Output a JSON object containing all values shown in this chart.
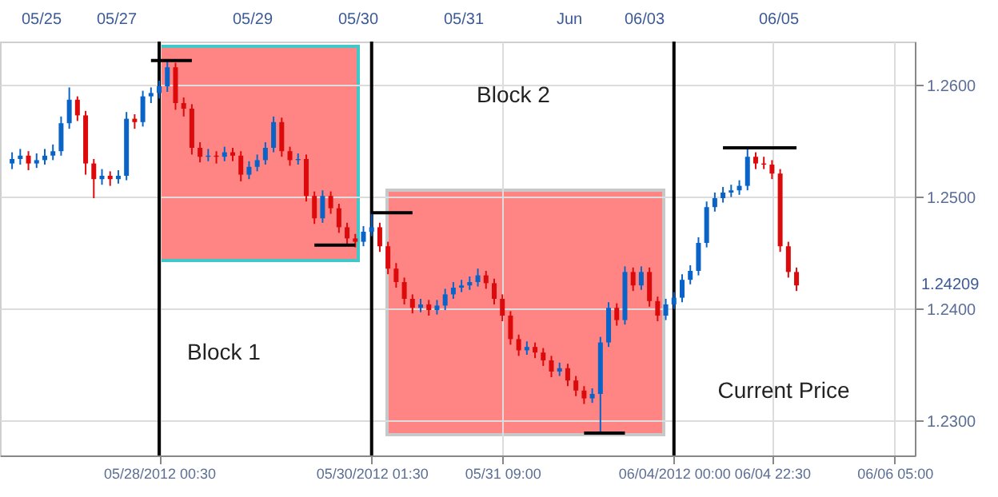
{
  "chart_data": {
    "type": "candlestick",
    "categories": [
      null,
      null,
      null,
      null,
      null,
      null,
      null,
      null,
      null,
      null,
      null,
      null,
      null,
      null,
      null,
      null,
      null,
      null,
      "05/28/2012 00:30",
      null,
      null,
      null,
      null,
      null,
      null,
      null,
      null,
      null,
      null,
      null,
      null,
      null,
      null,
      null,
      null,
      null,
      null,
      null,
      null,
      null,
      null,
      null,
      null,
      null,
      "05/30/2012 01:30",
      null,
      null,
      null,
      null,
      null,
      null,
      null,
      null,
      null,
      null,
      null,
      null,
      null,
      null,
      null,
      "05/31 09:00",
      null,
      null,
      null,
      null,
      null,
      null,
      null,
      null,
      null,
      null,
      null,
      null,
      null,
      null,
      null,
      null,
      null,
      null,
      null,
      null,
      "06/04/2012 00:00",
      null,
      null,
      null,
      null,
      null,
      null,
      null,
      null,
      null,
      null,
      null,
      "06/04 22:30",
      null,
      null,
      null,
      null,
      null,
      null,
      null,
      null,
      null,
      null,
      null,
      null,
      null,
      null,
      "06/06 05:00",
      null
    ],
    "ohlc": [
      [
        1.253,
        1.254,
        1.2525,
        1.2534
      ],
      [
        1.2534,
        1.2543,
        1.2529,
        1.2537
      ],
      [
        1.2537,
        1.2541,
        1.2524,
        1.253
      ],
      [
        1.253,
        1.2539,
        1.2526,
        1.2533
      ],
      [
        1.2533,
        1.2543,
        1.2529,
        1.2537
      ],
      [
        1.2537,
        1.2547,
        1.2533,
        1.2541
      ],
      [
        1.2541,
        1.2572,
        1.2537,
        1.2566
      ],
      [
        1.2566,
        1.2598,
        1.2561,
        1.2587
      ],
      [
        1.2587,
        1.259,
        1.2568,
        1.2573
      ],
      [
        1.2573,
        1.2577,
        1.252,
        1.253
      ],
      [
        1.253,
        1.2534,
        1.2499,
        1.2516
      ],
      [
        1.2516,
        1.2525,
        1.2511,
        1.2519
      ],
      [
        1.2519,
        1.2523,
        1.251,
        1.2516
      ],
      [
        1.2516,
        1.2524,
        1.2512,
        1.2519
      ],
      [
        1.2519,
        1.2576,
        1.2515,
        1.257
      ],
      [
        1.257,
        1.2574,
        1.2561,
        1.2567
      ],
      [
        1.2567,
        1.2595,
        1.2563,
        1.259
      ],
      [
        1.259,
        1.2598,
        1.2584,
        1.2593
      ],
      [
        1.2593,
        1.2604,
        1.2588,
        1.2599
      ],
      [
        1.2599,
        1.2622,
        1.2594,
        1.2616
      ],
      [
        1.2616,
        1.262,
        1.2578,
        1.2584
      ],
      [
        1.2584,
        1.2589,
        1.2572,
        1.2579
      ],
      [
        1.2579,
        1.2583,
        1.2538,
        1.2544
      ],
      [
        1.2544,
        1.2549,
        1.2531,
        1.2536
      ],
      [
        1.2536,
        1.2543,
        1.2532,
        1.2537
      ],
      [
        1.2537,
        1.2541,
        1.253,
        1.2536
      ],
      [
        1.2536,
        1.2545,
        1.2532,
        1.254
      ],
      [
        1.254,
        1.2544,
        1.2532,
        1.2537
      ],
      [
        1.2537,
        1.2541,
        1.2514,
        1.252
      ],
      [
        1.252,
        1.2532,
        1.2516,
        1.2527
      ],
      [
        1.2527,
        1.2538,
        1.2523,
        1.2533
      ],
      [
        1.2533,
        1.2549,
        1.2529,
        1.2544
      ],
      [
        1.2544,
        1.2572,
        1.254,
        1.2567
      ],
      [
        1.2567,
        1.2571,
        1.2536,
        1.2541
      ],
      [
        1.2541,
        1.2545,
        1.2528,
        1.2533
      ],
      [
        1.2533,
        1.2539,
        1.2529,
        1.2534
      ],
      [
        1.2534,
        1.2538,
        1.2496,
        1.2501
      ],
      [
        1.2501,
        1.2505,
        1.2476,
        1.2481
      ],
      [
        1.2481,
        1.2506,
        1.2477,
        1.2501
      ],
      [
        1.2501,
        1.2505,
        1.2485,
        1.249
      ],
      [
        1.249,
        1.2494,
        1.2468,
        1.2473
      ],
      [
        1.2473,
        1.2477,
        1.2458,
        1.2463
      ],
      [
        1.2463,
        1.2467,
        1.2455,
        1.246
      ],
      [
        1.246,
        1.2474,
        1.2456,
        1.2469
      ],
      [
        1.2469,
        1.2485,
        1.2465,
        1.2473
      ],
      [
        1.2473,
        1.2477,
        1.2451,
        1.2456
      ],
      [
        1.2456,
        1.246,
        1.2431,
        1.2436
      ],
      [
        1.2436,
        1.2441,
        1.2419,
        1.2424
      ],
      [
        1.2424,
        1.2428,
        1.2404,
        1.2409
      ],
      [
        1.2409,
        1.2413,
        1.2396,
        1.2401
      ],
      [
        1.2401,
        1.2409,
        1.2397,
        1.2404
      ],
      [
        1.2404,
        1.2408,
        1.2394,
        1.2399
      ],
      [
        1.2399,
        1.2408,
        1.2395,
        1.2403
      ],
      [
        1.2403,
        1.2418,
        1.2399,
        1.2413
      ],
      [
        1.2413,
        1.2424,
        1.2409,
        1.2419
      ],
      [
        1.2419,
        1.2426,
        1.2415,
        1.2421
      ],
      [
        1.2421,
        1.2429,
        1.2417,
        1.2424
      ],
      [
        1.2424,
        1.2436,
        1.242,
        1.243
      ],
      [
        1.243,
        1.2434,
        1.2418,
        1.2423
      ],
      [
        1.2423,
        1.2427,
        1.2404,
        1.2409
      ],
      [
        1.2409,
        1.2413,
        1.2389,
        1.2394
      ],
      [
        1.2394,
        1.2398,
        1.2368,
        1.2373
      ],
      [
        1.2373,
        1.2377,
        1.2358,
        1.2363
      ],
      [
        1.2363,
        1.2371,
        1.2359,
        1.2366
      ],
      [
        1.2366,
        1.237,
        1.2356,
        1.2361
      ],
      [
        1.2361,
        1.2365,
        1.2349,
        1.2354
      ],
      [
        1.2354,
        1.2358,
        1.2339,
        1.2344
      ],
      [
        1.2344,
        1.2352,
        1.234,
        1.2347
      ],
      [
        1.2347,
        1.2351,
        1.2331,
        1.2336
      ],
      [
        1.2336,
        1.234,
        1.2322,
        1.2327
      ],
      [
        1.2327,
        1.2331,
        1.2315,
        1.232
      ],
      [
        1.232,
        1.2329,
        1.2316,
        1.2324
      ],
      [
        1.2324,
        1.2375,
        1.2289,
        1.237
      ],
      [
        1.237,
        1.2406,
        1.2366,
        1.2401
      ],
      [
        1.2401,
        1.2405,
        1.2385,
        1.239
      ],
      [
        1.239,
        1.2438,
        1.2386,
        1.2433
      ],
      [
        1.2433,
        1.2437,
        1.2416,
        1.2421
      ],
      [
        1.2421,
        1.2438,
        1.2417,
        1.2433
      ],
      [
        1.2433,
        1.2437,
        1.2402,
        1.2407
      ],
      [
        1.2407,
        1.2411,
        1.2389,
        1.2394
      ],
      [
        1.2394,
        1.2409,
        1.239,
        1.2404
      ],
      [
        1.2404,
        1.2415,
        1.24,
        1.241
      ],
      [
        1.241,
        1.2431,
        1.2406,
        1.2426
      ],
      [
        1.2426,
        1.2439,
        1.2422,
        1.2434
      ],
      [
        1.2434,
        1.2464,
        1.243,
        1.2459
      ],
      [
        1.2459,
        1.2496,
        1.2455,
        1.2491
      ],
      [
        1.2491,
        1.2504,
        1.2487,
        1.2499
      ],
      [
        1.2499,
        1.2509,
        1.2495,
        1.2504
      ],
      [
        1.2504,
        1.2511,
        1.25,
        1.2506
      ],
      [
        1.2506,
        1.2515,
        1.2502,
        1.251
      ],
      [
        1.251,
        1.2544,
        1.2506,
        1.2536
      ],
      [
        1.2536,
        1.254,
        1.2525,
        1.253
      ],
      [
        1.253,
        1.2536,
        1.2525,
        1.2529
      ],
      [
        1.2529,
        1.2533,
        1.2516,
        1.2521
      ],
      [
        1.2521,
        1.2525,
        1.2451,
        1.2456
      ],
      [
        1.2456,
        1.246,
        1.2428,
        1.2433
      ],
      [
        1.2433,
        1.2437,
        1.2416,
        1.2421
      ],
      null,
      null,
      null,
      null,
      null,
      null,
      null,
      null,
      null,
      null,
      null,
      null,
      null
    ],
    "colors": [
      "#0a64c8",
      "#0a64c8",
      "#dc0a0a",
      "#0a64c8",
      "#0a64c8",
      "#0a64c8",
      "#0a64c8",
      "#0a64c8",
      "#dc0a0a",
      "#dc0a0a",
      "#dc0a0a",
      "#0a64c8",
      "#dc0a0a",
      "#0a64c8",
      "#0a64c8",
      "#dc0a0a",
      "#0a64c8",
      "#0a64c8",
      "#0a64c8",
      "#0a64c8",
      "#dc0a0a",
      "#dc0a0a",
      "#dc0a0a",
      "#dc0a0a",
      "#0a64c8",
      "#dc0a0a",
      "#0a64c8",
      "#dc0a0a",
      "#dc0a0a",
      "#0a64c8",
      "#0a64c8",
      "#0a64c8",
      "#0a64c8",
      "#dc0a0a",
      "#dc0a0a",
      "#0a64c8",
      "#dc0a0a",
      "#dc0a0a",
      "#0a64c8",
      "#dc0a0a",
      "#dc0a0a",
      "#dc0a0a",
      "#dc0a0a",
      "#0a64c8",
      "#0a64c8",
      "#dc0a0a",
      "#dc0a0a",
      "#dc0a0a",
      "#dc0a0a",
      "#dc0a0a",
      "#0a64c8",
      "#dc0a0a",
      "#0a64c8",
      "#0a64c8",
      "#0a64c8",
      "#0a64c8",
      "#0a64c8",
      "#0a64c8",
      "#dc0a0a",
      "#dc0a0a",
      "#dc0a0a",
      "#dc0a0a",
      "#dc0a0a",
      "#0a64c8",
      "#dc0a0a",
      "#dc0a0a",
      "#dc0a0a",
      "#0a64c8",
      "#dc0a0a",
      "#dc0a0a",
      "#dc0a0a",
      "#0a64c8",
      "#0a64c8",
      "#0a64c8",
      "#dc0a0a",
      "#0a64c8",
      "#dc0a0a",
      "#0a64c8",
      "#dc0a0a",
      "#dc0a0a",
      "#0a64c8",
      "#0a64c8",
      "#0a64c8",
      "#0a64c8",
      "#0a64c8",
      "#0a64c8",
      "#0a64c8",
      "#0a64c8",
      "#0a64c8",
      "#0a64c8",
      "#0a64c8",
      "#dc0a0a",
      "#dc0a0a",
      "#dc0a0a",
      "#dc0a0a",
      "#dc0a0a",
      "#dc0a0a",
      null,
      null,
      null,
      null,
      null,
      null,
      null,
      null,
      null,
      null,
      null,
      null,
      null
    ],
    "series": [
      {
        "type": "line",
        "color": "#000000",
        "values": [
          null,
          null,
          null,
          null,
          null,
          null,
          null,
          null,
          null,
          null,
          null,
          null,
          null,
          null,
          null,
          null,
          null,
          1.2622,
          1.2622,
          1.2622,
          1.2622,
          1.2622,
          1.2622,
          null,
          null,
          null,
          null,
          null,
          null,
          null,
          null,
          null,
          null,
          null,
          null,
          null,
          null,
          null,
          null,
          null,
          null,
          null,
          null,
          null,
          null,
          null,
          null,
          null,
          null,
          null,
          null,
          null,
          null,
          null,
          null,
          null,
          null,
          null,
          null,
          null,
          null,
          null,
          null,
          null,
          null,
          null,
          null,
          null,
          null,
          null,
          null,
          null,
          null,
          null,
          null,
          null,
          null,
          null,
          null,
          null,
          null,
          null,
          null,
          null,
          null,
          null,
          null,
          null,
          null,
          null,
          null,
          null,
          null,
          null,
          null,
          null,
          null,
          null,
          null,
          null,
          null,
          null,
          null,
          null,
          null,
          null,
          null,
          null,
          null,
          null
        ]
      },
      {
        "type": "line",
        "color": "#000000",
        "values": [
          null,
          null,
          null,
          null,
          null,
          null,
          null,
          null,
          null,
          null,
          null,
          null,
          null,
          null,
          null,
          null,
          null,
          null,
          null,
          null,
          null,
          null,
          null,
          null,
          null,
          null,
          null,
          null,
          null,
          null,
          null,
          null,
          null,
          null,
          null,
          null,
          null,
          1.2457,
          1.2457,
          1.2457,
          1.2457,
          1.2457,
          1.2457,
          null,
          null,
          null,
          null,
          null,
          null,
          null,
          null,
          null,
          null,
          null,
          null,
          null,
          null,
          null,
          null,
          null,
          null,
          null,
          null,
          null,
          null,
          null,
          null,
          null,
          null,
          null,
          null,
          null,
          null,
          null,
          null,
          null,
          null,
          null,
          null,
          null,
          null,
          null,
          null,
          null,
          null,
          null,
          null,
          null,
          null,
          null,
          null,
          null,
          null,
          null,
          null,
          null,
          null,
          null,
          null,
          null,
          null,
          null,
          null,
          null,
          null,
          null,
          null,
          null,
          null,
          null
        ]
      },
      {
        "type": "line",
        "color": "#000000",
        "values": [
          null,
          null,
          null,
          null,
          null,
          null,
          null,
          null,
          null,
          null,
          null,
          null,
          null,
          null,
          null,
          null,
          null,
          null,
          null,
          null,
          null,
          null,
          null,
          null,
          null,
          null,
          null,
          null,
          null,
          null,
          null,
          null,
          null,
          null,
          null,
          null,
          null,
          null,
          null,
          null,
          null,
          null,
          null,
          null,
          1.2486,
          1.2486,
          1.2486,
          1.2486,
          1.2486,
          1.2486,
          null,
          null,
          null,
          null,
          null,
          null,
          null,
          null,
          null,
          null,
          null,
          null,
          null,
          null,
          null,
          null,
          null,
          null,
          null,
          null,
          null,
          null,
          null,
          null,
          null,
          null,
          null,
          null,
          null,
          null,
          null,
          null,
          null,
          null,
          null,
          null,
          null,
          null,
          null,
          null,
          null,
          null,
          null,
          null,
          null,
          null,
          null,
          null,
          null,
          null,
          null,
          null,
          null,
          null,
          null,
          null,
          null,
          null,
          null,
          null
        ]
      },
      {
        "type": "line",
        "color": "#000000",
        "values": [
          null,
          null,
          null,
          null,
          null,
          null,
          null,
          null,
          null,
          null,
          null,
          null,
          null,
          null,
          null,
          null,
          null,
          null,
          null,
          null,
          null,
          null,
          null,
          null,
          null,
          null,
          null,
          null,
          null,
          null,
          null,
          null,
          null,
          null,
          null,
          null,
          null,
          null,
          null,
          null,
          null,
          null,
          null,
          null,
          null,
          null,
          null,
          null,
          null,
          null,
          null,
          null,
          null,
          null,
          null,
          null,
          null,
          null,
          null,
          null,
          null,
          null,
          null,
          null,
          null,
          null,
          null,
          null,
          null,
          null,
          1.2289,
          1.2289,
          1.2289,
          1.2289,
          1.2289,
          1.2289,
          null,
          null,
          null,
          null,
          null,
          null,
          null,
          null,
          null,
          null,
          null,
          null,
          null,
          null,
          null,
          null,
          null,
          null,
          null,
          null,
          null,
          null,
          null,
          null,
          null,
          null,
          null,
          null,
          null,
          null,
          null,
          null,
          null,
          null
        ]
      },
      {
        "type": "line",
        "color": "#000000",
        "values": [
          null,
          null,
          null,
          null,
          null,
          null,
          null,
          null,
          null,
          null,
          null,
          null,
          null,
          null,
          null,
          null,
          null,
          null,
          null,
          null,
          null,
          null,
          null,
          null,
          null,
          null,
          null,
          null,
          null,
          null,
          null,
          null,
          null,
          null,
          null,
          null,
          null,
          null,
          null,
          null,
          null,
          null,
          null,
          null,
          null,
          null,
          null,
          null,
          null,
          null,
          null,
          null,
          null,
          null,
          null,
          null,
          null,
          null,
          null,
          null,
          null,
          null,
          null,
          null,
          null,
          null,
          null,
          null,
          null,
          null,
          null,
          null,
          null,
          null,
          null,
          null,
          null,
          null,
          null,
          null,
          null,
          null,
          null,
          null,
          null,
          null,
          null,
          1.2544,
          1.2544,
          1.2544,
          1.2544,
          1.2544,
          1.2544,
          1.2544,
          1.2544,
          1.2544,
          1.2544,
          null,
          null,
          null,
          null,
          null,
          null,
          null,
          null,
          null,
          null,
          null,
          null,
          null
        ]
      }
    ],
    "ylim": [
      1.2269,
      1.2639
    ],
    "yticks": [
      {
        "value": 1.23,
        "label": "1.2300"
      },
      {
        "value": 1.24,
        "label": "1.2400"
      },
      {
        "value": 1.25,
        "label": "1.2500"
      },
      {
        "value": 1.26,
        "label": "1.2600"
      }
    ],
    "grid": true,
    "ref_lines": [
      {
        "axis": "x",
        "value": "05/28/2012 00:30",
        "color": "#000000"
      },
      {
        "axis": "x",
        "value": "05/30/2012 01:30",
        "color": "#000000"
      },
      {
        "axis": "x",
        "value": "06/04/2012 00:00",
        "color": "#000000"
      }
    ],
    "annotations": [
      "05/25",
      "05/27",
      "05/29",
      "05/30",
      "05/31",
      "Jun",
      "06/03",
      "06/05",
      "Block 1",
      "Block 2",
      "Current Price",
      "1.24209"
    ]
  }
}
